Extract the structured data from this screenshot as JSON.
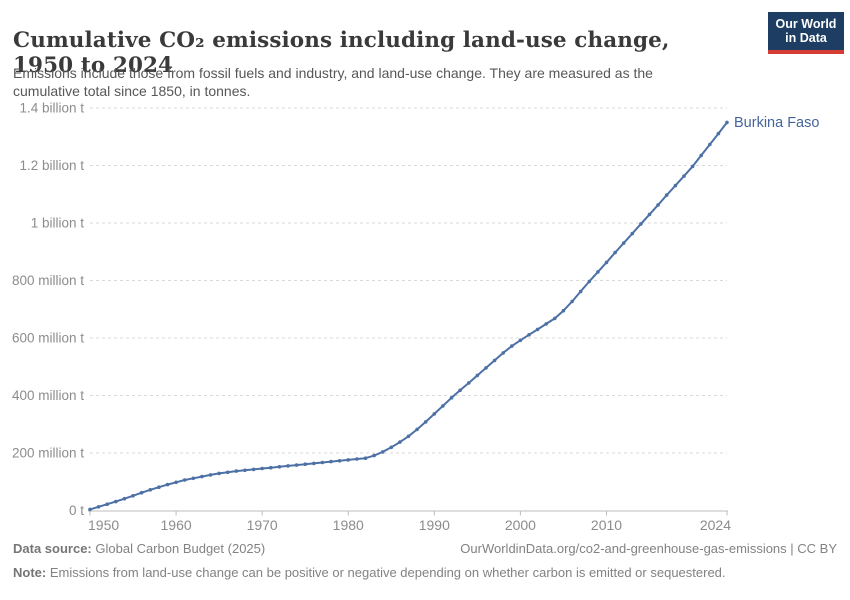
{
  "header": {
    "title": "Cumulative CO₂ emissions including land-use change, 1950 to 2024",
    "subtitle": "Emissions include those from fossil fuels and industry, and land-use change. They are measured as the cumulative total since 1850, in tonnes."
  },
  "logo": {
    "line1": "Our World",
    "line2": "in Data",
    "bg_color": "#1d3d63",
    "accent_color": "#d73c34"
  },
  "chart_data": {
    "type": "line",
    "title": "Cumulative CO₂ emissions including land-use change, 1950 to 2024",
    "grid": "dashed-horizontal",
    "legend_position": "end-of-line-label",
    "values_unit": "million tonnes",
    "xlim": [
      1950,
      2024
    ],
    "ylim": [
      0,
      1400
    ],
    "xticks": [
      1950,
      1960,
      1970,
      1980,
      1990,
      2000,
      2010,
      2024
    ],
    "yticks": [
      {
        "value": 0,
        "label": "0 t"
      },
      {
        "value": 200,
        "label": "200 million t"
      },
      {
        "value": 400,
        "label": "400 million t"
      },
      {
        "value": 600,
        "label": "600 million t"
      },
      {
        "value": 800,
        "label": "800 million t"
      },
      {
        "value": 1000,
        "label": "1 billion t"
      },
      {
        "value": 1200,
        "label": "1.2 billion t"
      },
      {
        "value": 1400,
        "label": "1.4 billion t"
      }
    ],
    "series": [
      {
        "name": "Burkina Faso",
        "color": "#4d70a5",
        "label_color": "#44659b",
        "x": [
          1950,
          1951,
          1952,
          1953,
          1954,
          1955,
          1956,
          1957,
          1958,
          1959,
          1960,
          1961,
          1962,
          1963,
          1964,
          1965,
          1966,
          1967,
          1968,
          1969,
          1970,
          1971,
          1972,
          1973,
          1974,
          1975,
          1976,
          1977,
          1978,
          1979,
          1980,
          1981,
          1982,
          1983,
          1984,
          1985,
          1986,
          1987,
          1988,
          1989,
          1990,
          1991,
          1992,
          1993,
          1994,
          1995,
          1996,
          1997,
          1998,
          1999,
          2000,
          2001,
          2002,
          2003,
          2004,
          2005,
          2006,
          2007,
          2008,
          2009,
          2010,
          2011,
          2012,
          2013,
          2014,
          2015,
          2016,
          2017,
          2018,
          2019,
          2020,
          2021,
          2022,
          2023,
          2024
        ],
        "values": [
          4,
          13,
          22,
          31,
          41,
          51,
          62,
          72,
          81,
          90,
          98,
          106,
          112,
          118,
          124,
          129,
          133,
          137,
          140,
          143,
          146,
          149,
          152,
          155,
          158,
          161,
          164,
          167,
          170,
          173,
          176,
          179,
          182,
          191,
          204,
          220,
          238,
          258,
          282,
          308,
          336,
          364,
          392,
          418,
          444,
          470,
          496,
          522,
          548,
          572,
          592,
          611,
          630,
          649,
          668,
          695,
          727,
          762,
          797,
          830,
          863,
          897,
          930,
          963,
          997,
          1030,
          1063,
          1097,
          1130,
          1163,
          1197,
          1235,
          1273,
          1311,
          1350
        ]
      }
    ]
  },
  "footer": {
    "datasource_label": "Data source:",
    "datasource": "Global Carbon Budget (2025)",
    "link": "OurWorldinData.org/co2-and-greenhouse-gas-emissions | CC BY",
    "note_label": "Note:",
    "note": "Emissions from land-use change can be positive or negative depending on whether carbon is emitted or sequestered."
  }
}
